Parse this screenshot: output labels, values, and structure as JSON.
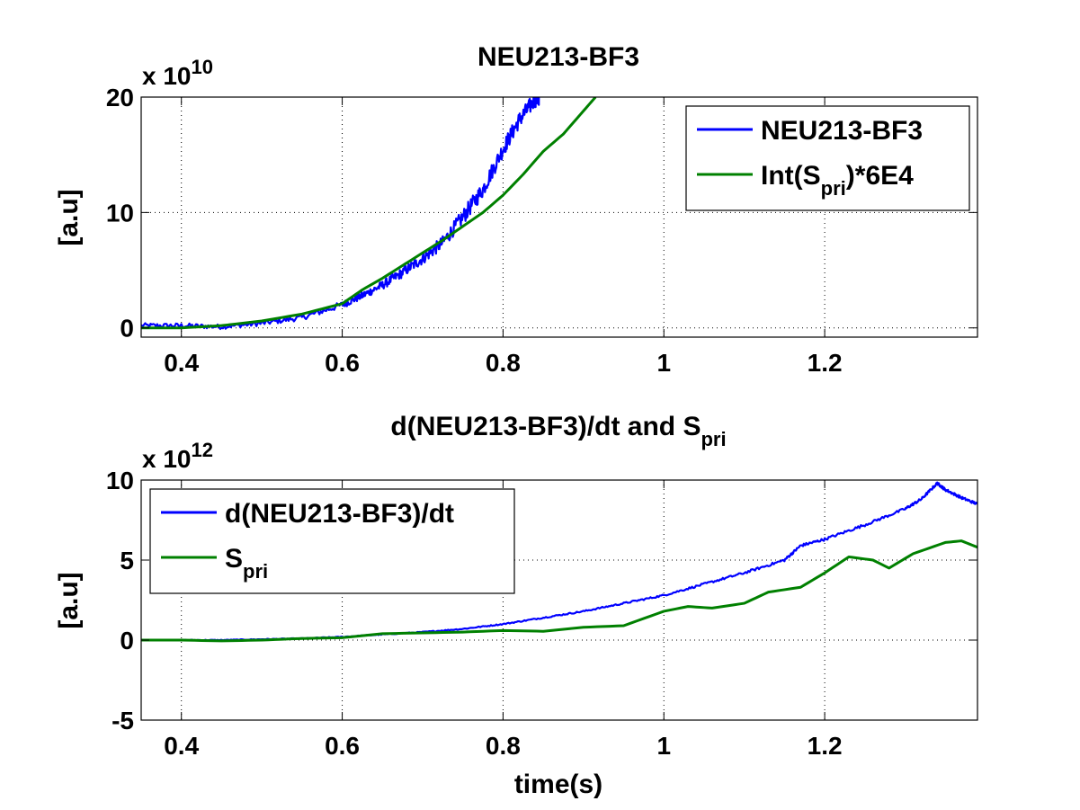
{
  "chart_data": [
    {
      "type": "line",
      "title": "NEU213-BF3",
      "xlabel": "",
      "ylabel": "[a.u]",
      "y_multiplier": {
        "base": "x 10",
        "exponent": "10"
      },
      "xlim": [
        0.35,
        1.39
      ],
      "ylim": [
        -0.8,
        20
      ],
      "xticks": [
        0.4,
        0.6,
        0.8,
        1,
        1.2
      ],
      "xtick_labels": [
        "0.4",
        "0.6",
        "0.8",
        "1",
        "1.2"
      ],
      "yticks": [
        0,
        10,
        20
      ],
      "ytick_labels": [
        "0",
        "10",
        "20"
      ],
      "grid": true,
      "legend": {
        "position": "top-right",
        "entries": [
          {
            "main": "NEU213-BF3",
            "sub": "",
            "suffix": ""
          },
          {
            "main": "Int(S",
            "sub": "pri",
            "suffix": ")*6E4"
          }
        ]
      },
      "series": [
        {
          "name": "NEU213-BF3",
          "color": "#0000ff",
          "noise": 0.5,
          "x": [
            0.35,
            0.4,
            0.45,
            0.5,
            0.55,
            0.6,
            0.625,
            0.65,
            0.675,
            0.7,
            0.725,
            0.75,
            0.775,
            0.8,
            0.82,
            0.84,
            0.845
          ],
          "y": [
            0.2,
            0.2,
            0.1,
            0.4,
            0.9,
            2.0,
            2.8,
            3.7,
            4.8,
            6.0,
            7.4,
            9.6,
            12.0,
            15.5,
            18.0,
            19.8,
            20.0
          ]
        },
        {
          "name": "Int(Spri)*6E4",
          "color": "#008000",
          "noise": 0,
          "x": [
            0.35,
            0.4,
            0.45,
            0.5,
            0.55,
            0.6,
            0.625,
            0.65,
            0.675,
            0.7,
            0.725,
            0.75,
            0.775,
            0.8,
            0.825,
            0.85,
            0.875,
            0.9,
            0.915
          ],
          "y": [
            0.0,
            0.0,
            0.2,
            0.6,
            1.2,
            2.1,
            3.3,
            4.3,
            5.4,
            6.5,
            7.6,
            8.8,
            10.0,
            11.5,
            13.3,
            15.3,
            16.8,
            18.8,
            20.0
          ]
        }
      ]
    },
    {
      "type": "line",
      "title": "d(NEU213-BF3)/dt and S",
      "title_sub": "pri",
      "xlabel": "time(s)",
      "ylabel": "[a.u]",
      "y_multiplier": {
        "base": "x 10",
        "exponent": "12"
      },
      "xlim": [
        0.35,
        1.39
      ],
      "ylim": [
        -5,
        10
      ],
      "xticks": [
        0.4,
        0.6,
        0.8,
        1,
        1.2
      ],
      "xtick_labels": [
        "0.4",
        "0.6",
        "0.8",
        "1",
        "1.2"
      ],
      "yticks": [
        -5,
        0,
        5,
        10
      ],
      "ytick_labels": [
        "-5",
        "0",
        "5",
        "10"
      ],
      "grid": true,
      "legend": {
        "position": "top-left",
        "entries": [
          {
            "main": "d(NEU213-BF3)/dt",
            "sub": "",
            "suffix": ""
          },
          {
            "main": "S",
            "sub": "pri",
            "suffix": ""
          }
        ]
      },
      "series": [
        {
          "name": "d(NEU213-BF3)/dt",
          "color": "#0000ff",
          "noise": 0.06,
          "x": [
            0.35,
            0.4,
            0.45,
            0.5,
            0.55,
            0.6,
            0.65,
            0.7,
            0.75,
            0.8,
            0.85,
            0.9,
            0.95,
            1.0,
            1.05,
            1.1,
            1.15,
            1.17,
            1.2,
            1.25,
            1.3,
            1.32,
            1.34,
            1.35,
            1.37,
            1.39
          ],
          "y": [
            0.0,
            0.0,
            0.0,
            0.05,
            0.1,
            0.2,
            0.35,
            0.5,
            0.7,
            1.0,
            1.4,
            1.8,
            2.3,
            2.8,
            3.5,
            4.2,
            5.0,
            5.9,
            6.3,
            7.2,
            8.2,
            8.8,
            9.8,
            9.4,
            8.9,
            8.5
          ]
        },
        {
          "name": "Spri",
          "color": "#008000",
          "noise": 0,
          "x": [
            0.35,
            0.4,
            0.45,
            0.5,
            0.55,
            0.6,
            0.65,
            0.7,
            0.75,
            0.8,
            0.85,
            0.9,
            0.95,
            1.0,
            1.03,
            1.06,
            1.1,
            1.13,
            1.17,
            1.2,
            1.23,
            1.26,
            1.28,
            1.31,
            1.35,
            1.37,
            1.39
          ],
          "y": [
            0.0,
            0.0,
            -0.05,
            0.0,
            0.1,
            0.15,
            0.4,
            0.45,
            0.5,
            0.6,
            0.55,
            0.8,
            0.9,
            1.8,
            2.1,
            2.0,
            2.3,
            3.0,
            3.3,
            4.2,
            5.2,
            5.0,
            4.5,
            5.4,
            6.1,
            6.2,
            5.8
          ]
        }
      ]
    }
  ]
}
